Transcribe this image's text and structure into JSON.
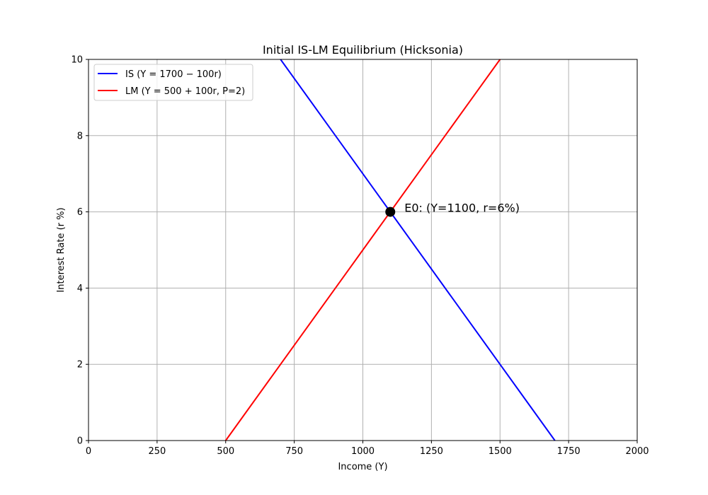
{
  "chart_data": {
    "type": "line",
    "title": "Initial IS-LM Equilibrium (Hicksonia)",
    "xlabel": "Income (Y)",
    "ylabel": "Interest Rate (r %)",
    "xlim": [
      0,
      2000
    ],
    "ylim": [
      0,
      10
    ],
    "xticks": [
      0,
      250,
      500,
      750,
      1000,
      1250,
      1500,
      1750,
      2000
    ],
    "yticks": [
      0,
      2,
      4,
      6,
      8,
      10
    ],
    "grid": true,
    "legend_position": "top-left",
    "series": [
      {
        "name": "IS (Y = 1700 − 100r)",
        "color": "#0000ff",
        "x": [
          1700,
          700
        ],
        "y": [
          0,
          10
        ]
      },
      {
        "name": "LM (Y = 500 + 100r, P=2)",
        "color": "#ff0000",
        "x": [
          500,
          1500
        ],
        "y": [
          0,
          10
        ]
      }
    ],
    "points": [
      {
        "x": 1100,
        "y": 6,
        "color": "#000000",
        "label": "E0: (Y=1100, r=6%)"
      }
    ]
  }
}
